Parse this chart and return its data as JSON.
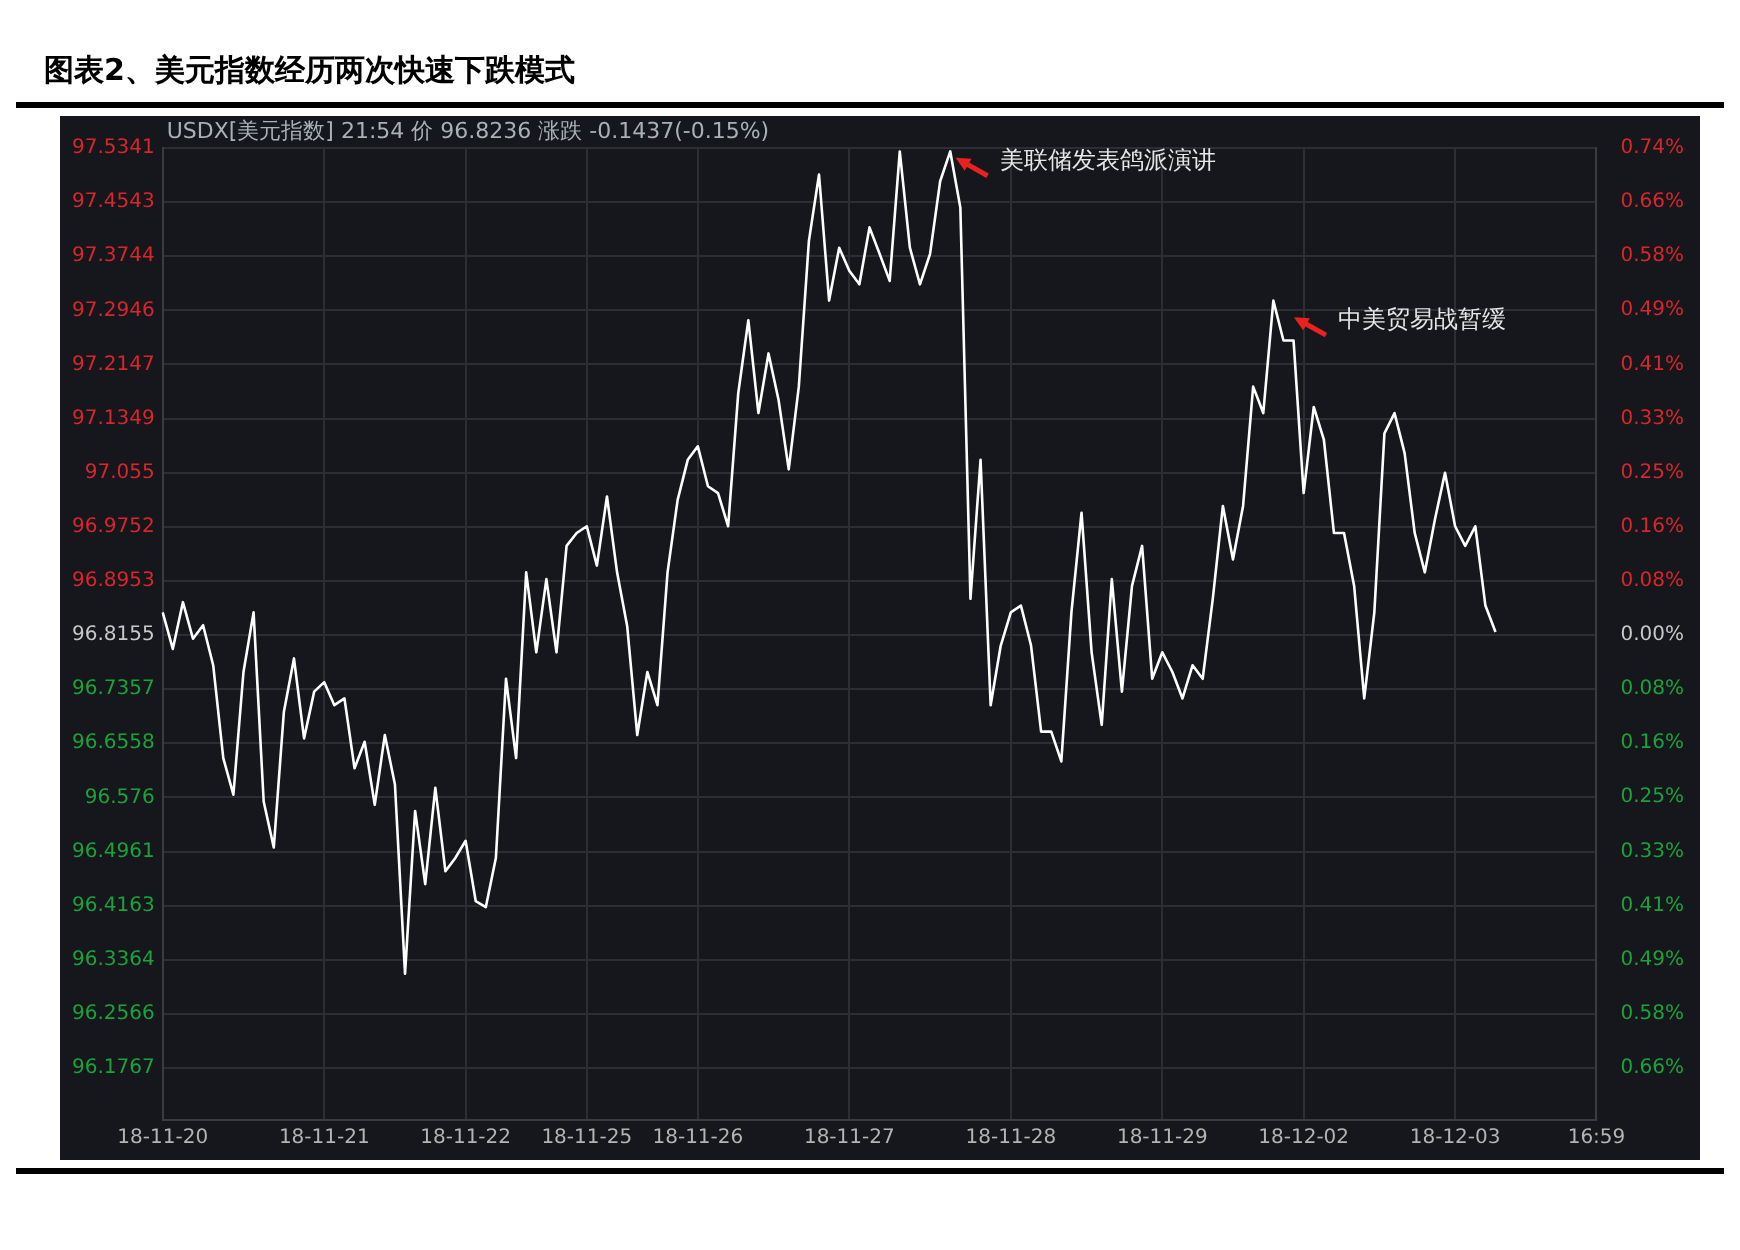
{
  "chart_data": {
    "type": "line",
    "title": "图表2、美元指数经历两次快速下跌模式",
    "subtitle": "USDX[美元指数] 21:54 价 96.8236 涨跌 -0.1437(-0.15%)",
    "annotations": [
      "美联储发表鸽派演讲",
      "中美贸易战暂缓"
    ],
    "categories": [
      "18-11-20",
      null,
      null,
      null,
      null,
      null,
      null,
      null,
      null,
      null,
      null,
      null,
      null,
      null,
      null,
      null,
      "18-11-21",
      null,
      null,
      null,
      null,
      null,
      null,
      null,
      null,
      null,
      null,
      null,
      null,
      null,
      "18-11-22",
      null,
      null,
      null,
      null,
      null,
      null,
      null,
      null,
      null,
      null,
      null,
      "18-11-25",
      null,
      null,
      null,
      null,
      null,
      null,
      null,
      null,
      null,
      null,
      "18-11-26",
      null,
      null,
      null,
      null,
      null,
      null,
      null,
      null,
      null,
      null,
      null,
      null,
      null,
      null,
      "18-11-27",
      null,
      null,
      null,
      null,
      null,
      null,
      null,
      null,
      null,
      null,
      null,
      null,
      null,
      null,
      null,
      "18-11-28",
      null,
      null,
      null,
      null,
      null,
      null,
      null,
      null,
      null,
      null,
      null,
      null,
      null,
      null,
      "18-11-29",
      null,
      null,
      null,
      null,
      null,
      null,
      null,
      null,
      null,
      null,
      null,
      null,
      null,
      "18-12-02",
      null,
      null,
      null,
      null,
      null,
      null,
      null,
      null,
      null,
      null,
      null,
      null,
      null,
      null,
      "18-12-03",
      null,
      null,
      null,
      null,
      null,
      null,
      null,
      null,
      null,
      null,
      null,
      null,
      null,
      "16:59"
    ],
    "series": [
      {
        "color": "#ffffff",
        "values": [
          96.849,
          96.795,
          96.864,
          96.81,
          96.83,
          96.771,
          96.634,
          96.58,
          96.761,
          96.849,
          96.57,
          96.502,
          96.702,
          96.781,
          96.663,
          96.732,
          96.746,
          96.712,
          96.722,
          96.619,
          96.658,
          96.565,
          96.668,
          96.595,
          96.316,
          96.556,
          96.448,
          96.59,
          96.467,
          96.487,
          96.512,
          96.423,
          96.414,
          96.487,
          96.751,
          96.634,
          96.908,
          96.79,
          96.898,
          96.79,
          96.947,
          96.966,
          96.976,
          96.918,
          97.02,
          96.908,
          96.829,
          96.668,
          96.761,
          96.712,
          96.908,
          97.015,
          97.074,
          97.094,
          97.035,
          97.025,
          96.976,
          97.172,
          97.28,
          97.143,
          97.231,
          97.162,
          97.06,
          97.182,
          97.397,
          97.495,
          97.309,
          97.387,
          97.353,
          97.333,
          97.417,
          97.378,
          97.338,
          97.529,
          97.387,
          97.333,
          97.378,
          97.485,
          97.529,
          97.446,
          96.869,
          97.074,
          96.712,
          96.8,
          96.849,
          96.859,
          96.8,
          96.673,
          96.673,
          96.629,
          96.849,
          96.996,
          96.79,
          96.683,
          96.898,
          96.732,
          96.888,
          96.947,
          96.751,
          96.79,
          96.761,
          96.722,
          96.771,
          96.751,
          96.869,
          97.006,
          96.927,
          97.006,
          97.182,
          97.143,
          97.309,
          97.25,
          97.25,
          97.025,
          97.152,
          97.104,
          96.966,
          96.966,
          96.888,
          96.722,
          96.849,
          97.113,
          97.143,
          97.084,
          96.966,
          96.908,
          96.986,
          97.055,
          96.976,
          96.947,
          96.976,
          96.859,
          96.82,
          null,
          null,
          null,
          null,
          null,
          null,
          null,
          null,
          null,
          null
        ]
      }
    ],
    "ylim": [
      96.1,
      97.5341
    ],
    "yticks": [
      96.1767,
      96.2566,
      96.3364,
      96.4163,
      96.4961,
      96.576,
      96.6558,
      96.7357,
      96.8155,
      96.8953,
      96.9752,
      97.055,
      97.1349,
      97.2147,
      97.2946,
      97.3744,
      97.4543,
      97.5341
    ],
    "y2lim": [
      -0.739,
      0.742
    ],
    "y2ticks": [
      {
        "value": -0.66,
        "label": "0.66%"
      },
      {
        "value": -0.577,
        "label": "0.58%"
      },
      {
        "value": -0.495,
        "label": "0.49%"
      },
      {
        "value": -0.412,
        "label": "0.41%"
      },
      {
        "value": -0.33,
        "label": "0.33%"
      },
      {
        "value": -0.247,
        "label": "0.25%"
      },
      {
        "value": -0.165,
        "label": "0.16%"
      },
      {
        "value": -0.082,
        "label": "0.08%"
      },
      {
        "value": 0,
        "label": "0.00%"
      },
      {
        "value": 0.082,
        "label": "0.08%"
      },
      {
        "value": 0.165,
        "label": "0.16%"
      },
      {
        "value": 0.247,
        "label": "0.25%"
      },
      {
        "value": 0.33,
        "label": "0.33%"
      },
      {
        "value": 0.412,
        "label": "0.41%"
      },
      {
        "value": 0.495,
        "label": "0.49%"
      },
      {
        "value": 0.577,
        "label": "0.58%"
      },
      {
        "value": 0.66,
        "label": "0.66%"
      },
      {
        "value": 0.742,
        "label": "0.74%"
      }
    ],
    "grid": true,
    "legend": false,
    "marker": "none",
    "line_style": "solid"
  }
}
